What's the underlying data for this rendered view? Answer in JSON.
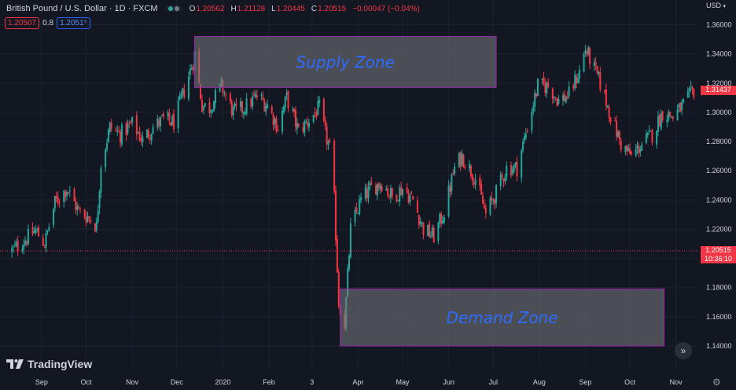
{
  "header": {
    "symbol": "British Pound / U.S. Dollar · 1D · FXCM",
    "ohlc": {
      "open_label": "O",
      "open": "1.20562",
      "high_label": "H",
      "high": "1.21128",
      "low_label": "L",
      "low": "1.20445",
      "close_label": "C",
      "close": "1.20515",
      "change": "−0.00047 (−0.04%)"
    },
    "quote": {
      "bid": "1.20507",
      "spread": "0.8",
      "ask": "1.2051⁵"
    },
    "currency": "USD"
  },
  "price_tags": {
    "last": "1.20515",
    "countdown": "10:36:10",
    "high": "1.31437"
  },
  "logo_text": "TradingView",
  "icons": {
    "logo": "tradingview-logo-icon",
    "scroll": "chevrons-right-icon",
    "settings": "gear-icon",
    "currency": "chevron-down-icon"
  },
  "colors": {
    "background": "#131722",
    "up": "#26a69a",
    "down": "#f23645",
    "zone": "#7a7b80",
    "zone_border": "#9c27b0",
    "zone_text": "#2f6bff"
  },
  "chart_data": {
    "type": "candlestick",
    "title": "",
    "x_labels": [
      "Sep",
      "Oct",
      "Nov",
      "Dec",
      "2020",
      "Feb",
      "3",
      "Apr",
      "May",
      "Jun",
      "Jul",
      "Aug",
      "Sep",
      "Oct",
      "Nov"
    ],
    "y_ticks": [
      "1.36000",
      "1.34000",
      "1.32000",
      "1.30000",
      "1.28000",
      "1.26000",
      "1.24000",
      "1.22000",
      "1.20000",
      "1.18000",
      "1.16000",
      "1.14000"
    ],
    "ylim": [
      1.13,
      1.366
    ],
    "grid": true,
    "last_price": 1.20515,
    "zones": [
      {
        "label": "Supply Zone",
        "x_start": "2019-12-13",
        "x_end": "2020-07-03",
        "y_low": 1.317,
        "y_high": 1.352
      },
      {
        "label": "Demand Zone",
        "x_start": "2020-03-20",
        "x_end": "2020-10-24",
        "y_low": 1.14,
        "y_high": 1.179
      }
    ],
    "series": [
      {
        "type": "close-path",
        "x": [
          "2019-08-12",
          "2019-08-20",
          "2019-08-28",
          "2019-09-03",
          "2019-09-10",
          "2019-09-18",
          "2019-09-26",
          "2019-10-03",
          "2019-10-08",
          "2019-10-11",
          "2019-10-17",
          "2019-10-24",
          "2019-11-01",
          "2019-11-08",
          "2019-11-15",
          "2019-11-22",
          "2019-11-29",
          "2019-12-06",
          "2019-12-12",
          "2019-12-13",
          "2019-12-18",
          "2019-12-23",
          "2019-12-31",
          "2020-01-08",
          "2020-01-15",
          "2020-01-24",
          "2020-01-31",
          "2020-02-07",
          "2020-02-13",
          "2020-02-21",
          "2020-02-28",
          "2020-03-06",
          "2020-03-10",
          "2020-03-13",
          "2020-03-16",
          "2020-03-19",
          "2020-03-23",
          "2020-03-27",
          "2020-04-03",
          "2020-04-10",
          "2020-04-17",
          "2020-04-24",
          "2020-05-01",
          "2020-05-08",
          "2020-05-15",
          "2020-05-22",
          "2020-05-29",
          "2020-06-05",
          "2020-06-10",
          "2020-06-19",
          "2020-06-26",
          "2020-07-03",
          "2020-07-10",
          "2020-07-17",
          "2020-07-24",
          "2020-07-31",
          "2020-08-07",
          "2020-08-14",
          "2020-08-21",
          "2020-08-28",
          "2020-09-01",
          "2020-09-04",
          "2020-09-11",
          "2020-09-18",
          "2020-09-25",
          "2020-10-02",
          "2020-10-09",
          "2020-10-16",
          "2020-10-23",
          "2020-10-30",
          "2020-11-06",
          "2020-11-13"
        ],
        "y": [
          1.205,
          1.212,
          1.219,
          1.21,
          1.238,
          1.248,
          1.232,
          1.228,
          1.222,
          1.265,
          1.29,
          1.285,
          1.292,
          1.281,
          1.29,
          1.295,
          1.293,
          1.315,
          1.335,
          1.34,
          1.305,
          1.303,
          1.318,
          1.3,
          1.303,
          1.311,
          1.305,
          1.29,
          1.31,
          1.287,
          1.295,
          1.303,
          1.285,
          1.275,
          1.24,
          1.17,
          1.155,
          1.22,
          1.24,
          1.248,
          1.252,
          1.242,
          1.248,
          1.24,
          1.22,
          1.215,
          1.232,
          1.262,
          1.27,
          1.255,
          1.23,
          1.245,
          1.262,
          1.262,
          1.29,
          1.318,
          1.318,
          1.308,
          1.312,
          1.328,
          1.343,
          1.337,
          1.32,
          1.298,
          1.278,
          1.27,
          1.278,
          1.285,
          1.3,
          1.297,
          1.305,
          1.315
        ]
      }
    ]
  }
}
